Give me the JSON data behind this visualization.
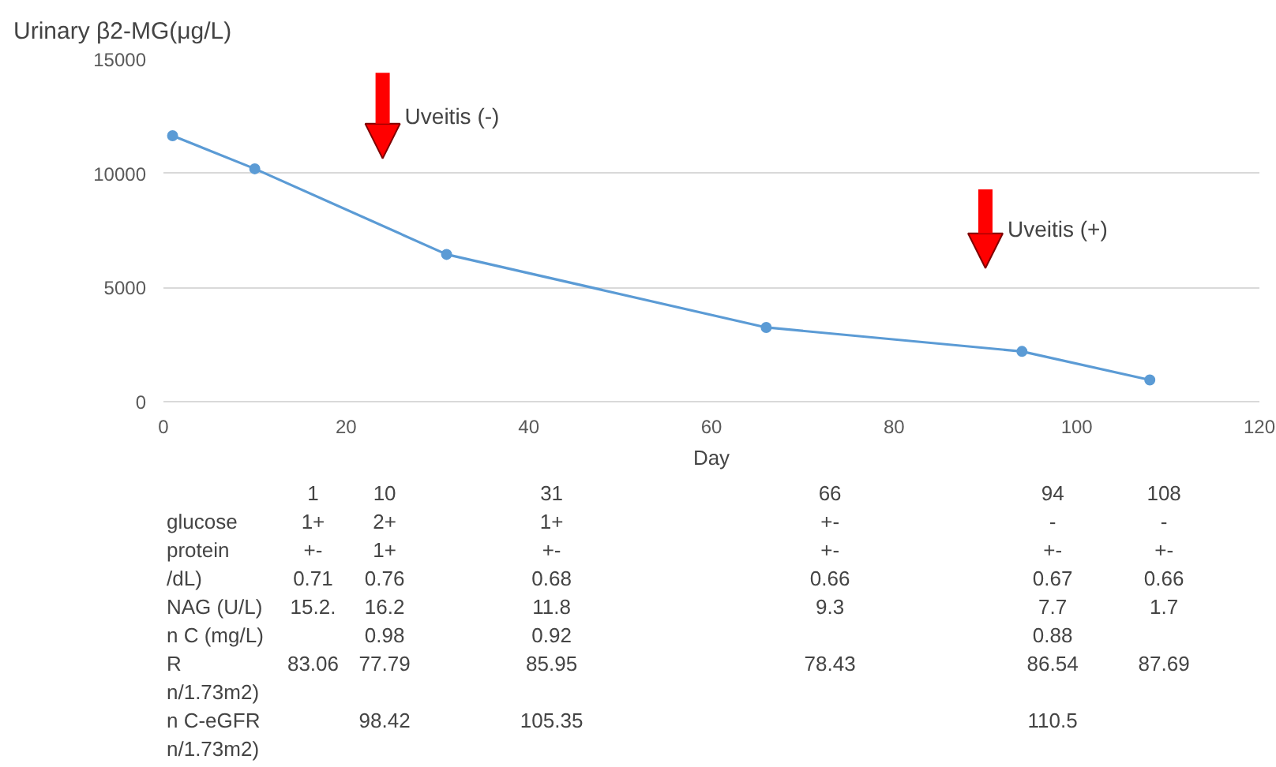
{
  "chart_data": {
    "type": "line",
    "ylabel": "Urinary β2-MG(μg/L)",
    "xlabel": "Day",
    "x": [
      1,
      10,
      31,
      66,
      94,
      108
    ],
    "series": [
      {
        "color": "#5b9bd5",
        "values": [
          11650,
          10200,
          6450,
          3250,
          2200,
          950
        ]
      }
    ],
    "marker": "circle",
    "line_style": "solid",
    "grid": "y",
    "xlim": [
      0,
      120
    ],
    "xticks": [
      0,
      20,
      40,
      60,
      80,
      100,
      120
    ],
    "ylim": [
      0,
      15000
    ],
    "yticks": [
      0,
      5000,
      10000,
      15000
    ],
    "annotations": [
      "Uveitis (-)",
      "Uveitis (+)",
      "1",
      "10",
      "31",
      "66",
      "94",
      "108",
      "glucose",
      "1+",
      "2+",
      "1+",
      "+-",
      "-",
      "-",
      "protein",
      "+-",
      "1+",
      "+-",
      "+-",
      "+-",
      "+-",
      "/dL)",
      "0.71",
      "0.76",
      "0.68",
      "0.66",
      "0.67",
      "0.66",
      "NAG (U/L)",
      "15.2.",
      "16.2",
      "11.8",
      "9.3",
      "7.7",
      "1.7",
      "n C (mg/L)",
      "0.98",
      "0.92",
      "0.88",
      "R",
      "83.06",
      "77.79",
      "85.95",
      "78.43",
      "86.54",
      "87.69",
      "n/1.73m2)",
      "n C-eGFR",
      "98.42",
      "105.35",
      "110.5",
      "n/1.73m2)"
    ]
  }
}
